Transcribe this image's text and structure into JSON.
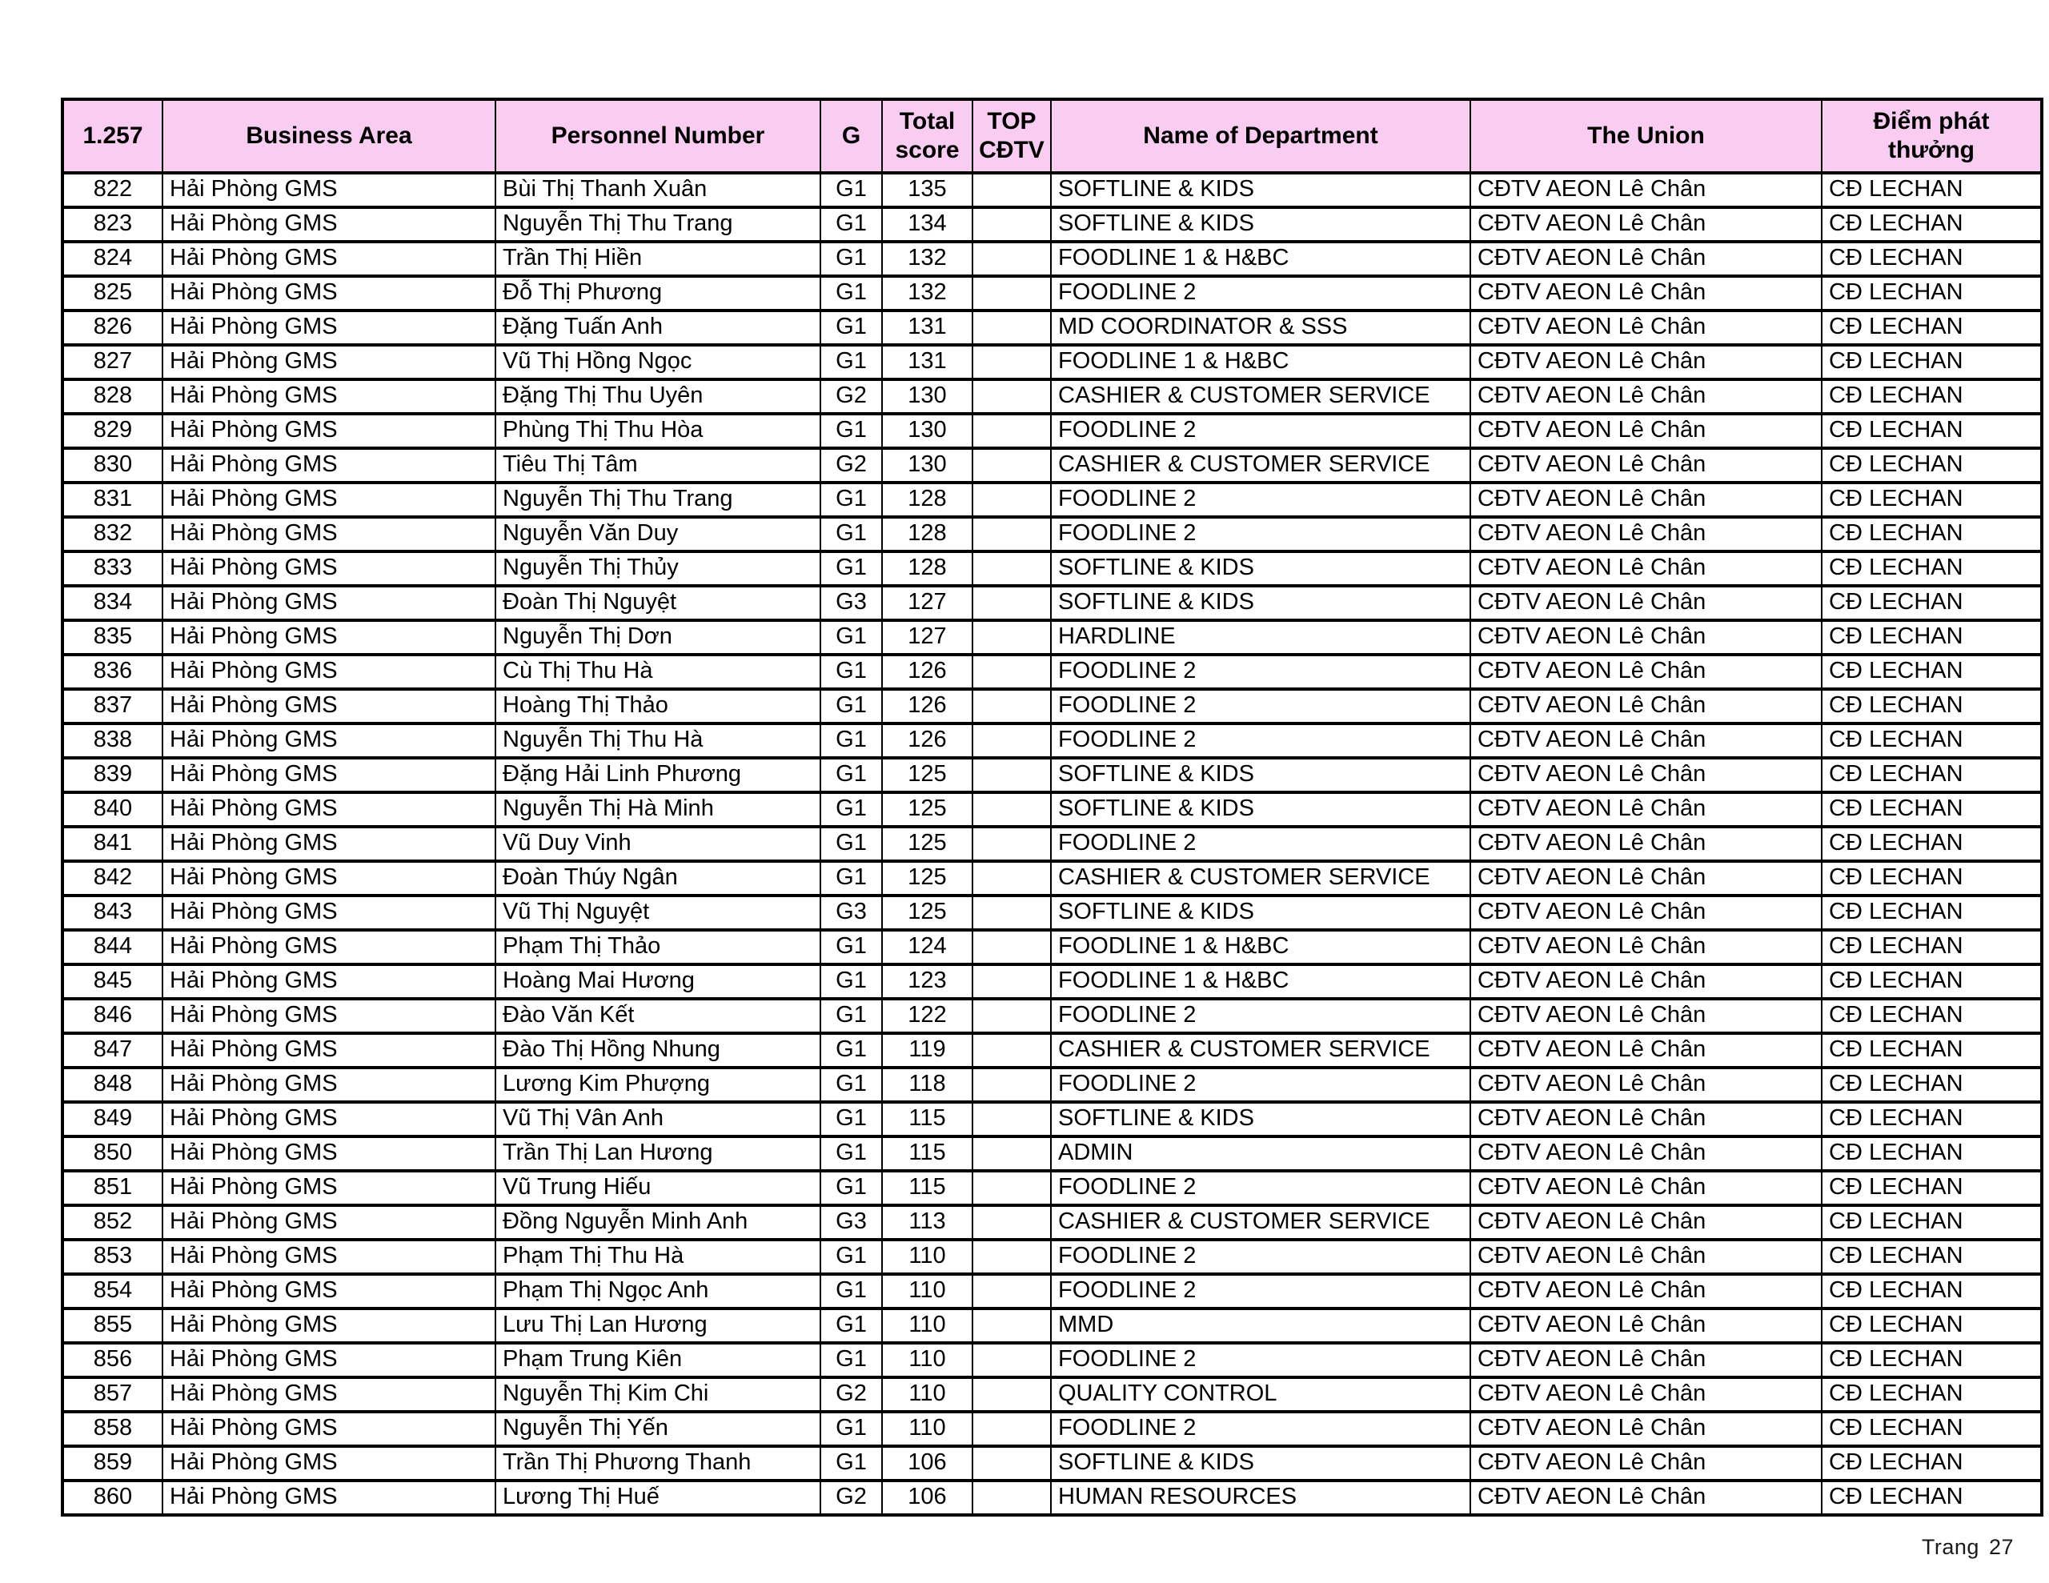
{
  "page": {
    "background": "#ffffff"
  },
  "table": {
    "header_bg": "#f9ccf2",
    "border_color": "#000000",
    "headers": [
      "1.257",
      "Business Area",
      "Personnel Number",
      "G",
      "Total score",
      "TOP CĐTV",
      "Name of Department",
      "The Union",
      "Điểm phát thưởng"
    ],
    "column_keys": [
      "row_number",
      "business_area",
      "personnel_number",
      "grade",
      "total_score",
      "top_cdtv",
      "department",
      "union",
      "reward_point"
    ],
    "rows": [
      [
        "822",
        "Hải Phòng GMS",
        "Bùi Thị Thanh Xuân",
        "G1",
        "135",
        "",
        "SOFTLINE & KIDS",
        "CĐTV AEON Lê Chân",
        "CĐ LECHAN"
      ],
      [
        "823",
        "Hải Phòng GMS",
        "Nguyễn Thị Thu Trang",
        "G1",
        "134",
        "",
        "SOFTLINE & KIDS",
        "CĐTV AEON Lê Chân",
        "CĐ LECHAN"
      ],
      [
        "824",
        "Hải Phòng GMS",
        "Trần Thị Hiền",
        "G1",
        "132",
        "",
        "FOODLINE 1 & H&BC",
        "CĐTV AEON Lê Chân",
        "CĐ LECHAN"
      ],
      [
        "825",
        "Hải Phòng GMS",
        "Đỗ Thị Phương",
        "G1",
        "132",
        "",
        "FOODLINE 2",
        "CĐTV AEON Lê Chân",
        "CĐ LECHAN"
      ],
      [
        "826",
        "Hải Phòng GMS",
        "Đặng Tuấn Anh",
        "G1",
        "131",
        "",
        "MD COORDINATOR & SSS",
        "CĐTV AEON Lê Chân",
        "CĐ LECHAN"
      ],
      [
        "827",
        "Hải Phòng GMS",
        "Vũ Thị Hồng Ngọc",
        "G1",
        "131",
        "",
        "FOODLINE 1 & H&BC",
        "CĐTV AEON Lê Chân",
        "CĐ LECHAN"
      ],
      [
        "828",
        "Hải Phòng GMS",
        "Đặng Thị Thu Uyên",
        "G2",
        "130",
        "",
        "CASHIER & CUSTOMER SERVICE",
        "CĐTV AEON Lê Chân",
        "CĐ LECHAN"
      ],
      [
        "829",
        "Hải Phòng GMS",
        "Phùng Thị Thu Hòa",
        "G1",
        "130",
        "",
        "FOODLINE 2",
        "CĐTV AEON Lê Chân",
        "CĐ LECHAN"
      ],
      [
        "830",
        "Hải Phòng GMS",
        "Tiêu Thị Tâm",
        "G2",
        "130",
        "",
        "CASHIER & CUSTOMER SERVICE",
        "CĐTV AEON Lê Chân",
        "CĐ LECHAN"
      ],
      [
        "831",
        "Hải Phòng GMS",
        "Nguyễn Thị Thu Trang",
        "G1",
        "128",
        "",
        "FOODLINE 2",
        "CĐTV AEON Lê Chân",
        "CĐ LECHAN"
      ],
      [
        "832",
        "Hải Phòng GMS",
        "Nguyễn Văn Duy",
        "G1",
        "128",
        "",
        "FOODLINE 2",
        "CĐTV AEON Lê Chân",
        "CĐ LECHAN"
      ],
      [
        "833",
        "Hải Phòng GMS",
        "Nguyễn Thị Thủy",
        "G1",
        "128",
        "",
        "SOFTLINE & KIDS",
        "CĐTV AEON Lê Chân",
        "CĐ LECHAN"
      ],
      [
        "834",
        "Hải Phòng GMS",
        "Đoàn Thị Nguyệt",
        "G3",
        "127",
        "",
        "SOFTLINE & KIDS",
        "CĐTV AEON Lê Chân",
        "CĐ LECHAN"
      ],
      [
        "835",
        "Hải Phòng GMS",
        "Nguyễn Thị Dơn",
        "G1",
        "127",
        "",
        "HARDLINE",
        "CĐTV AEON Lê Chân",
        "CĐ LECHAN"
      ],
      [
        "836",
        "Hải Phòng GMS",
        "Cù Thị Thu Hà",
        "G1",
        "126",
        "",
        "FOODLINE 2",
        "CĐTV AEON Lê Chân",
        "CĐ LECHAN"
      ],
      [
        "837",
        "Hải Phòng GMS",
        "Hoàng Thị Thảo",
        "G1",
        "126",
        "",
        "FOODLINE 2",
        "CĐTV AEON Lê Chân",
        "CĐ LECHAN"
      ],
      [
        "838",
        "Hải Phòng GMS",
        "Nguyễn Thị Thu Hà",
        "G1",
        "126",
        "",
        "FOODLINE 2",
        "CĐTV AEON Lê Chân",
        "CĐ LECHAN"
      ],
      [
        "839",
        "Hải Phòng GMS",
        "Đặng Hải Linh Phương",
        "G1",
        "125",
        "",
        "SOFTLINE & KIDS",
        "CĐTV AEON Lê Chân",
        "CĐ LECHAN"
      ],
      [
        "840",
        "Hải Phòng GMS",
        "Nguyễn Thị Hà Minh",
        "G1",
        "125",
        "",
        "SOFTLINE & KIDS",
        "CĐTV AEON Lê Chân",
        "CĐ LECHAN"
      ],
      [
        "841",
        "Hải Phòng GMS",
        "Vũ Duy Vinh",
        "G1",
        "125",
        "",
        "FOODLINE 2",
        "CĐTV AEON Lê Chân",
        "CĐ LECHAN"
      ],
      [
        "842",
        "Hải Phòng GMS",
        "Đoàn Thúy Ngân",
        "G1",
        "125",
        "",
        "CASHIER & CUSTOMER SERVICE",
        "CĐTV AEON Lê Chân",
        "CĐ LECHAN"
      ],
      [
        "843",
        "Hải Phòng GMS",
        "Vũ Thị Nguyệt",
        "G3",
        "125",
        "",
        "SOFTLINE & KIDS",
        "CĐTV AEON Lê Chân",
        "CĐ LECHAN"
      ],
      [
        "844",
        "Hải Phòng GMS",
        "Phạm Thị Thảo",
        "G1",
        "124",
        "",
        "FOODLINE 1 & H&BC",
        "CĐTV AEON Lê Chân",
        "CĐ LECHAN"
      ],
      [
        "845",
        "Hải Phòng GMS",
        "Hoàng Mai Hương",
        "G1",
        "123",
        "",
        "FOODLINE 1 & H&BC",
        "CĐTV AEON Lê Chân",
        "CĐ LECHAN"
      ],
      [
        "846",
        "Hải Phòng GMS",
        "Đào Văn Kết",
        "G1",
        "122",
        "",
        "FOODLINE 2",
        "CĐTV AEON Lê Chân",
        "CĐ LECHAN"
      ],
      [
        "847",
        "Hải Phòng GMS",
        "Đào Thị Hồng Nhung",
        "G1",
        "119",
        "",
        "CASHIER & CUSTOMER SERVICE",
        "CĐTV AEON Lê Chân",
        "CĐ LECHAN"
      ],
      [
        "848",
        "Hải Phòng GMS",
        "Lương Kim Phượng",
        "G1",
        "118",
        "",
        "FOODLINE 2",
        "CĐTV AEON Lê Chân",
        "CĐ LECHAN"
      ],
      [
        "849",
        "Hải Phòng GMS",
        "Vũ Thị Vân Anh",
        "G1",
        "115",
        "",
        "SOFTLINE & KIDS",
        "CĐTV AEON Lê Chân",
        "CĐ LECHAN"
      ],
      [
        "850",
        "Hải Phòng GMS",
        "Trần Thị Lan Hương",
        "G1",
        "115",
        "",
        "ADMIN",
        "CĐTV AEON Lê Chân",
        "CĐ LECHAN"
      ],
      [
        "851",
        "Hải Phòng GMS",
        "Vũ Trung Hiếu",
        "G1",
        "115",
        "",
        "FOODLINE 2",
        "CĐTV AEON Lê Chân",
        "CĐ LECHAN"
      ],
      [
        "852",
        "Hải Phòng GMS",
        "Đồng Nguyễn Minh Anh",
        "G3",
        "113",
        "",
        "CASHIER & CUSTOMER SERVICE",
        "CĐTV AEON Lê Chân",
        "CĐ LECHAN"
      ],
      [
        "853",
        "Hải Phòng GMS",
        "Phạm Thị Thu Hà",
        "G1",
        "110",
        "",
        "FOODLINE 2",
        "CĐTV AEON Lê Chân",
        "CĐ LECHAN"
      ],
      [
        "854",
        "Hải Phòng GMS",
        "Phạm Thị Ngọc Anh",
        "G1",
        "110",
        "",
        "FOODLINE 2",
        "CĐTV AEON Lê Chân",
        "CĐ LECHAN"
      ],
      [
        "855",
        "Hải Phòng GMS",
        "Lưu Thị Lan Hương",
        "G1",
        "110",
        "",
        "MMD",
        "CĐTV AEON Lê Chân",
        "CĐ LECHAN"
      ],
      [
        "856",
        "Hải Phòng GMS",
        "Phạm Trung Kiên",
        "G1",
        "110",
        "",
        "FOODLINE 2",
        "CĐTV AEON Lê Chân",
        "CĐ LECHAN"
      ],
      [
        "857",
        "Hải Phòng GMS",
        "Nguyễn Thị Kim Chi",
        "G2",
        "110",
        "",
        "QUALITY CONTROL",
        "CĐTV AEON Lê Chân",
        "CĐ LECHAN"
      ],
      [
        "858",
        "Hải Phòng GMS",
        "Nguyễn Thị Yến",
        "G1",
        "110",
        "",
        "FOODLINE 2",
        "CĐTV AEON Lê Chân",
        "CĐ LECHAN"
      ],
      [
        "859",
        "Hải Phòng GMS",
        "Trần Thị Phương Thanh",
        "G1",
        "106",
        "",
        "SOFTLINE & KIDS",
        "CĐTV AEON Lê Chân",
        "CĐ LECHAN"
      ],
      [
        "860",
        "Hải Phòng GMS",
        "Lương Thị Huế",
        "G2",
        "106",
        "",
        "HUMAN RESOURCES",
        "CĐTV AEON Lê Chân",
        "CĐ LECHAN"
      ]
    ]
  },
  "footer": {
    "label": "Trang",
    "page_number": "27"
  }
}
